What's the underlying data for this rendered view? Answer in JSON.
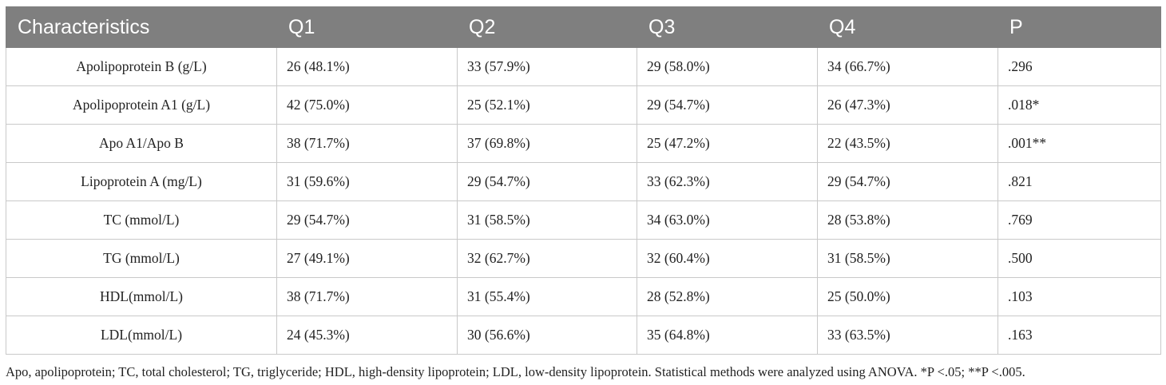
{
  "table": {
    "headers": [
      "Characteristics",
      "Q1",
      "Q2",
      "Q3",
      "Q4",
      "P"
    ],
    "rows": [
      [
        "Apolipoprotein B (g/L)",
        "26 (48.1%)",
        "33 (57.9%)",
        "29 (58.0%)",
        "34 (66.7%)",
        ".296"
      ],
      [
        "Apolipoprotein A1 (g/L)",
        "42 (75.0%)",
        "25 (52.1%)",
        "29 (54.7%)",
        "26 (47.3%)",
        ".018*"
      ],
      [
        "Apo A1/Apo B",
        "38 (71.7%)",
        "37 (69.8%)",
        "25 (47.2%)",
        "22 (43.5%)",
        ".001**"
      ],
      [
        "Lipoprotein A (mg/L)",
        "31 (59.6%)",
        "29 (54.7%)",
        "33 (62.3%)",
        "29 (54.7%)",
        ".821"
      ],
      [
        "TC (mmol/L)",
        "29 (54.7%)",
        "31 (58.5%)",
        "34 (63.0%)",
        "28 (53.8%)",
        ".769"
      ],
      [
        "TG (mmol/L)",
        "27 (49.1%)",
        "32 (62.7%)",
        "32 (60.4%)",
        "31 (58.5%)",
        ".500"
      ],
      [
        "HDL(mmol/L)",
        "38 (71.7%)",
        "31 (55.4%)",
        "28 (52.8%)",
        "25 (50.0%)",
        ".103"
      ],
      [
        "LDL(mmol/L)",
        "24 (45.3%)",
        "30 (56.6%)",
        "35 (64.8%)",
        "33 (63.5%)",
        ".163"
      ]
    ]
  },
  "footnote": "Apo, apolipoprotein; TC, total cholesterol; TG, triglyceride; HDL, high-density lipoprotein; LDL, low-density lipoprotein. Statistical methods were analyzed using ANOVA. *P <.05; **P <.005.",
  "colors": {
    "header_bg": "#7f7f7f",
    "header_text": "#ffffff",
    "grid": "#c9c9c9"
  }
}
